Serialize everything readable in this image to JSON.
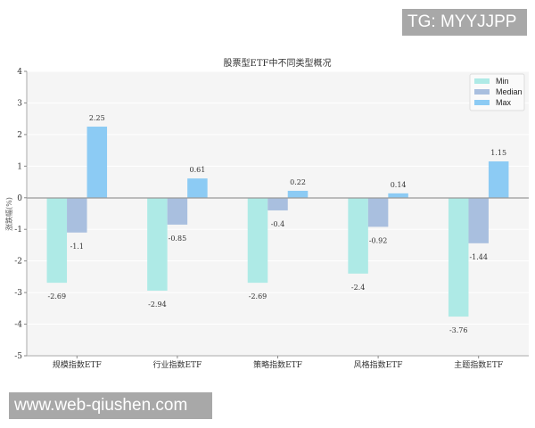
{
  "watermarks": {
    "top": "TG: MYYJJPP",
    "bottom": "www.web-qiushen.com"
  },
  "chart_data": {
    "type": "bar",
    "title": "股票型ETF中不同类型概况",
    "xlabel": "",
    "ylabel": "涨跌幅(%)",
    "ylim": [
      -5,
      4
    ],
    "yticks": [
      4,
      3,
      2,
      1,
      0,
      -1,
      -2,
      -3,
      -4,
      -5
    ],
    "grid": true,
    "legend_position": "upper right",
    "categories": [
      "规模指数ETF",
      "行业指数ETF",
      "策略指数ETF",
      "风格指数ETF",
      "主题指数ETF"
    ],
    "series": [
      {
        "name": "Min",
        "color": "#aeeae6",
        "values": [
          -2.69,
          -2.94,
          -2.69,
          -2.4,
          -3.76
        ]
      },
      {
        "name": "Median",
        "color": "#a9bfdf",
        "values": [
          -1.1,
          -0.85,
          -0.4,
          -0.92,
          -1.44
        ]
      },
      {
        "name": "Max",
        "color": "#8ccbf4",
        "values": [
          2.25,
          0.61,
          0.22,
          0.14,
          1.15
        ]
      }
    ]
  }
}
